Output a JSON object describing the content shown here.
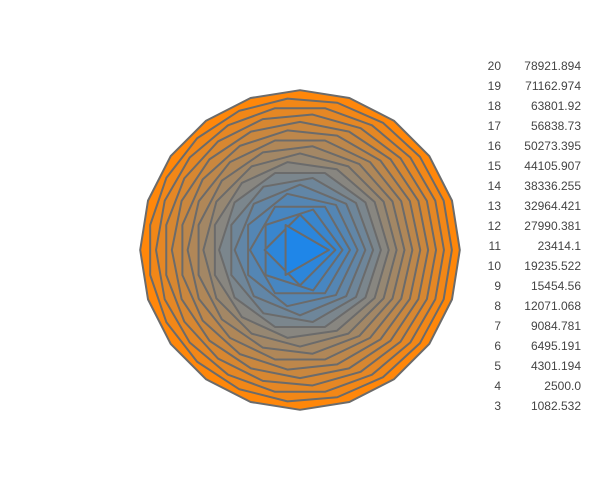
{
  "chart_data": {
    "type": "polygons",
    "description_free": true,
    "stroke_color": "#6b6b6b",
    "inner_color": "#1f86e8",
    "outer_color": "#ff870a",
    "background": "#ffffff",
    "polygons": [
      {
        "sides": 20,
        "area": "78921.894"
      },
      {
        "sides": 19,
        "area": "71162.974"
      },
      {
        "sides": 18,
        "area": "63801.92"
      },
      {
        "sides": 17,
        "area": "56838.73"
      },
      {
        "sides": 16,
        "area": "50273.395"
      },
      {
        "sides": 15,
        "area": "44105.907"
      },
      {
        "sides": 14,
        "area": "38336.255"
      },
      {
        "sides": 13,
        "area": "32964.421"
      },
      {
        "sides": 12,
        "area": "27990.381"
      },
      {
        "sides": 11,
        "area": "23414.1"
      },
      {
        "sides": 10,
        "area": "19235.522"
      },
      {
        "sides": 9,
        "area": "15454.56"
      },
      {
        "sides": 8,
        "area": "12071.068"
      },
      {
        "sides": 7,
        "area": "9084.781"
      },
      {
        "sides": 6,
        "area": "6495.191"
      },
      {
        "sides": 5,
        "area": "4301.194"
      },
      {
        "sides": 4,
        "area": "2500.0"
      },
      {
        "sides": 3,
        "area": "1082.532"
      }
    ]
  }
}
